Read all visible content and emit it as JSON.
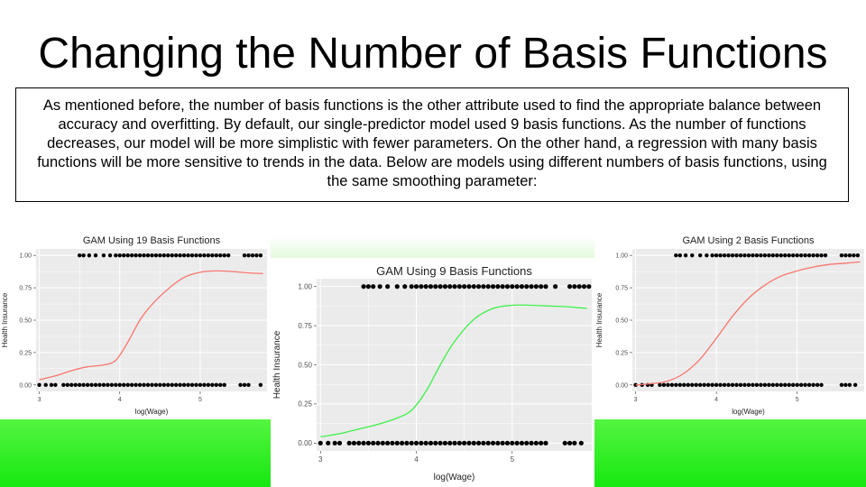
{
  "slide": {
    "title": "Changing the Number of Basis Functions",
    "description": "As mentioned before, the number of basis functions is the other attribute used to find the appropriate balance between accuracy and overfitting. By default, our single-predictor model used 9 basis functions. As the number of functions decreases, our model will be more simplistic with fewer parameters. On the other hand, a regression with many basis functions will be more sensitive to trends in the data. Below are models using different numbers of basis functions, using the same smoothing parameter:"
  },
  "colors": {
    "band_green": "#22ec16",
    "panel_bg": "#ebebeb",
    "grid": "#ffffff",
    "points": "#000000",
    "curve_19": "#f8766d",
    "curve_9": "#3ef04a",
    "curve_2": "#f8766d"
  },
  "chart_data": [
    {
      "type": "line",
      "title": "GAM Using 19 Basis Functions",
      "xlabel": "log(Wage)",
      "ylabel": "Health Insurance",
      "xlim": [
        2.96,
        5.83
      ],
      "ylim": [
        -0.05,
        1.05
      ],
      "xticks": [
        3,
        4,
        5
      ],
      "xtick_labels": [
        "3",
        "4",
        "5"
      ],
      "yticks": [
        0,
        0.25,
        0.5,
        0.75,
        1
      ],
      "ytick_labels": [
        "0.00",
        "0.25",
        "0.50",
        "0.75",
        "1.00"
      ],
      "grid": true,
      "series": [
        {
          "color": "#f8766d",
          "x": [
            3.0,
            3.2,
            3.4,
            3.6,
            3.8,
            3.95,
            4.1,
            4.25,
            4.4,
            4.6,
            4.8,
            5.0,
            5.2,
            5.4,
            5.6,
            5.78
          ],
          "y": [
            0.04,
            0.07,
            0.11,
            0.14,
            0.155,
            0.19,
            0.33,
            0.5,
            0.62,
            0.74,
            0.83,
            0.87,
            0.88,
            0.875,
            0.865,
            0.86
          ]
        }
      ],
      "points": {
        "y1_x": [
          3.5,
          3.55,
          3.62,
          3.7,
          3.8,
          3.88,
          3.95,
          4.0,
          4.05,
          4.1,
          4.15,
          4.2,
          4.25,
          4.3,
          4.35,
          4.4,
          4.45,
          4.5,
          4.55,
          4.6,
          4.65,
          4.7,
          4.75,
          4.8,
          4.85,
          4.9,
          4.95,
          5.0,
          5.05,
          5.1,
          5.15,
          5.2,
          5.25,
          5.3,
          5.35,
          5.55,
          5.6,
          5.65,
          5.7,
          5.75
        ],
        "y0_x": [
          3.0,
          3.08,
          3.15,
          3.2,
          3.3,
          3.35,
          3.4,
          3.45,
          3.5,
          3.55,
          3.6,
          3.65,
          3.7,
          3.75,
          3.8,
          3.85,
          3.9,
          3.95,
          4.0,
          4.05,
          4.1,
          4.15,
          4.2,
          4.25,
          4.3,
          4.35,
          4.4,
          4.45,
          4.5,
          4.55,
          4.6,
          4.65,
          4.7,
          4.75,
          4.8,
          4.85,
          4.9,
          4.95,
          5.0,
          5.05,
          5.1,
          5.15,
          5.2,
          5.25,
          5.3,
          5.5,
          5.55,
          5.6,
          5.75
        ]
      }
    },
    {
      "type": "line",
      "title": "GAM Using 9 Basis Functions",
      "xlabel": "log(Wage)",
      "ylabel": "Health Insurance",
      "xlim": [
        2.96,
        5.83
      ],
      "ylim": [
        -0.05,
        1.05
      ],
      "xticks": [
        3,
        4,
        5
      ],
      "xtick_labels": [
        "3",
        "4",
        "5"
      ],
      "yticks": [
        0,
        0.25,
        0.5,
        0.75,
        1
      ],
      "ytick_labels": [
        "0.00",
        "0.25",
        "0.50",
        "0.75",
        "1.00"
      ],
      "grid": true,
      "series": [
        {
          "color": "#3ef04a",
          "x": [
            3.0,
            3.2,
            3.4,
            3.6,
            3.8,
            3.95,
            4.1,
            4.25,
            4.4,
            4.6,
            4.8,
            5.0,
            5.2,
            5.4,
            5.6,
            5.78
          ],
          "y": [
            0.04,
            0.06,
            0.09,
            0.12,
            0.16,
            0.21,
            0.33,
            0.5,
            0.65,
            0.79,
            0.86,
            0.88,
            0.88,
            0.875,
            0.87,
            0.86
          ]
        }
      ],
      "points": {
        "y1_x": [
          3.45,
          3.5,
          3.55,
          3.62,
          3.7,
          3.8,
          3.88,
          3.95,
          4.0,
          4.05,
          4.1,
          4.15,
          4.2,
          4.25,
          4.3,
          4.35,
          4.4,
          4.45,
          4.5,
          4.55,
          4.6,
          4.65,
          4.7,
          4.75,
          4.8,
          4.85,
          4.9,
          4.95,
          5.0,
          5.05,
          5.1,
          5.15,
          5.2,
          5.25,
          5.3,
          5.35,
          5.45,
          5.6,
          5.65,
          5.7,
          5.75,
          5.8
        ],
        "y0_x": [
          3.0,
          3.08,
          3.15,
          3.2,
          3.3,
          3.35,
          3.4,
          3.45,
          3.5,
          3.55,
          3.6,
          3.65,
          3.7,
          3.75,
          3.8,
          3.85,
          3.9,
          3.95,
          4.0,
          4.05,
          4.1,
          4.15,
          4.2,
          4.25,
          4.3,
          4.35,
          4.4,
          4.45,
          4.5,
          4.55,
          4.6,
          4.65,
          4.7,
          4.75,
          4.8,
          4.85,
          4.9,
          4.95,
          5.0,
          5.05,
          5.1,
          5.15,
          5.2,
          5.25,
          5.3,
          5.35,
          5.55,
          5.6,
          5.65,
          5.72
        ]
      }
    },
    {
      "type": "line",
      "title": "GAM Using 2 Basis Functions",
      "xlabel": "log(Wage)",
      "ylabel": "Health Insurance",
      "xlim": [
        2.96,
        5.83
      ],
      "ylim": [
        -0.05,
        1.05
      ],
      "xticks": [
        3,
        4,
        5
      ],
      "xtick_labels": [
        "3",
        "4",
        "5"
      ],
      "yticks": [
        0,
        0.25,
        0.5,
        0.75,
        1
      ],
      "ytick_labels": [
        "0.00",
        "0.25",
        "0.50",
        "0.75",
        "1.00"
      ],
      "grid": true,
      "series": [
        {
          "color": "#f8766d",
          "x": [
            3.0,
            3.2,
            3.4,
            3.6,
            3.8,
            4.0,
            4.2,
            4.4,
            4.6,
            4.8,
            5.0,
            5.2,
            5.4,
            5.6,
            5.78
          ],
          "y": [
            0.0,
            0.01,
            0.03,
            0.09,
            0.2,
            0.36,
            0.53,
            0.67,
            0.77,
            0.84,
            0.88,
            0.91,
            0.93,
            0.94,
            0.95
          ]
        }
      ],
      "points": {
        "y1_x": [
          3.5,
          3.55,
          3.62,
          3.7,
          3.8,
          3.88,
          3.95,
          4.0,
          4.05,
          4.1,
          4.15,
          4.2,
          4.25,
          4.3,
          4.35,
          4.4,
          4.45,
          4.5,
          4.55,
          4.6,
          4.65,
          4.7,
          4.75,
          4.8,
          4.85,
          4.9,
          4.95,
          5.0,
          5.05,
          5.1,
          5.15,
          5.2,
          5.25,
          5.3,
          5.35,
          5.55,
          5.6,
          5.65,
          5.7,
          5.75
        ],
        "y0_x": [
          3.0,
          3.08,
          3.15,
          3.2,
          3.3,
          3.35,
          3.4,
          3.45,
          3.5,
          3.55,
          3.6,
          3.65,
          3.7,
          3.75,
          3.8,
          3.85,
          3.9,
          3.95,
          4.0,
          4.05,
          4.1,
          4.15,
          4.2,
          4.25,
          4.3,
          4.35,
          4.4,
          4.45,
          4.5,
          4.55,
          4.6,
          4.65,
          4.7,
          4.75,
          4.8,
          4.85,
          4.9,
          4.95,
          5.0,
          5.05,
          5.1,
          5.15,
          5.2,
          5.25,
          5.3,
          5.55,
          5.6,
          5.65,
          5.72
        ]
      }
    }
  ]
}
